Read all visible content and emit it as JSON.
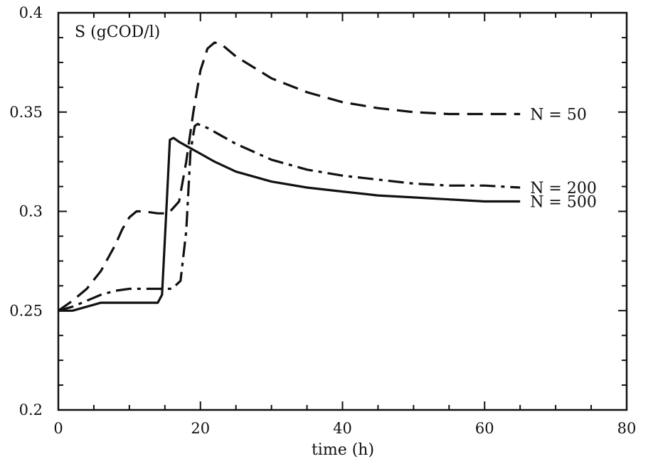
{
  "chart_data": {
    "type": "line",
    "title": "",
    "xlabel": "time (h)",
    "ylabel": "S (gCOD/l)",
    "xlim": [
      0,
      80
    ],
    "ylim": [
      0.2,
      0.4
    ],
    "xticks": [
      0,
      20,
      40,
      60,
      80
    ],
    "yticks": [
      0.2,
      0.25,
      0.3,
      0.35,
      0.4
    ],
    "xtick_labels": [
      "0",
      "20",
      "40",
      "60",
      "80"
    ],
    "ytick_labels": [
      "0.2",
      "0.25",
      "0.3",
      "0.35",
      "0.4"
    ],
    "grid": false,
    "legend": "inline-right",
    "series": [
      {
        "name": "N = 50",
        "label": "N = 50",
        "style": "dashed",
        "x": [
          0,
          2,
          4,
          6,
          8,
          9,
          10,
          11,
          12,
          14,
          15.5,
          17,
          18,
          19,
          20,
          21,
          22,
          23,
          25,
          30,
          35,
          40,
          45,
          50,
          55,
          60,
          65
        ],
        "y": [
          0.25,
          0.255,
          0.261,
          0.27,
          0.283,
          0.291,
          0.297,
          0.3,
          0.3,
          0.299,
          0.299,
          0.305,
          0.325,
          0.35,
          0.371,
          0.382,
          0.385,
          0.384,
          0.378,
          0.367,
          0.36,
          0.355,
          0.352,
          0.35,
          0.349,
          0.349,
          0.349
        ]
      },
      {
        "name": "N = 200",
        "label": "N = 200",
        "style": "dashdot",
        "x": [
          0,
          2,
          4,
          6,
          8,
          10,
          13,
          16,
          17.2,
          18,
          18.6,
          19.2,
          19.6,
          21,
          23,
          25,
          30,
          35,
          40,
          45,
          50,
          55,
          60,
          65
        ],
        "y": [
          0.25,
          0.252,
          0.255,
          0.258,
          0.26,
          0.261,
          0.261,
          0.261,
          0.265,
          0.29,
          0.33,
          0.343,
          0.344,
          0.342,
          0.338,
          0.334,
          0.326,
          0.321,
          0.318,
          0.316,
          0.314,
          0.313,
          0.313,
          0.312
        ]
      },
      {
        "name": "N = 500",
        "label": "N = 500",
        "style": "solid",
        "x": [
          0,
          2,
          4,
          6,
          8,
          10,
          12,
          14,
          14.6,
          15.2,
          15.7,
          16.2,
          17,
          18,
          20,
          22,
          25,
          30,
          35,
          40,
          45,
          50,
          55,
          60,
          65
        ],
        "y": [
          0.25,
          0.25,
          0.252,
          0.254,
          0.254,
          0.254,
          0.254,
          0.254,
          0.258,
          0.3,
          0.336,
          0.337,
          0.335,
          0.333,
          0.329,
          0.325,
          0.32,
          0.315,
          0.312,
          0.31,
          0.308,
          0.307,
          0.306,
          0.305,
          0.305
        ]
      }
    ]
  }
}
